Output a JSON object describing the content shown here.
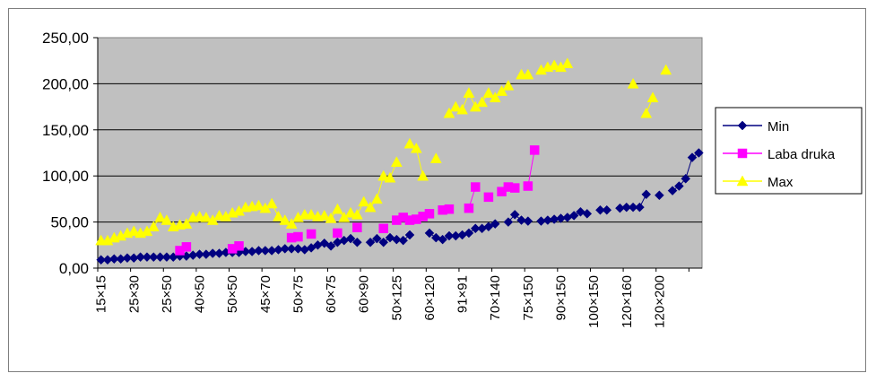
{
  "chart_data": {
    "type": "line",
    "title": "",
    "xlabel": "",
    "ylabel": "",
    "ylim": [
      0,
      250
    ],
    "yticks": [
      "0,00",
      "50,00",
      "100,00",
      "150,00",
      "200,00",
      "250,00"
    ],
    "grid": "horizontal",
    "legend_position": "right",
    "categories": [
      "15×15",
      "25×30",
      "25×50",
      "40×50",
      "50×50",
      "45×70",
      "50×75",
      "60×75",
      "60×90",
      "50×125",
      "60×120",
      "91×91",
      "70×140",
      "75×150",
      "90×150",
      "100×150",
      "120×160",
      "120×200"
    ],
    "series": [
      {
        "name": "Min",
        "color": "#000080",
        "marker": "diamond",
        "points": [
          [
            1,
            9
          ],
          [
            2,
            9
          ],
          [
            3,
            10
          ],
          [
            4,
            10
          ],
          [
            5,
            11
          ],
          [
            6,
            11
          ],
          [
            7,
            12
          ],
          [
            8,
            12
          ],
          [
            9,
            12
          ],
          [
            10,
            12
          ],
          [
            11,
            12
          ],
          [
            12,
            12
          ],
          [
            13,
            13
          ],
          [
            14,
            13
          ],
          [
            15,
            14
          ],
          [
            16,
            15
          ],
          [
            17,
            15
          ],
          [
            18,
            16
          ],
          [
            19,
            16
          ],
          [
            20,
            17
          ],
          [
            21,
            17
          ],
          [
            22,
            17
          ],
          [
            23,
            18
          ],
          [
            24,
            18
          ],
          [
            25,
            19
          ],
          [
            26,
            19
          ],
          [
            27,
            19
          ],
          [
            28,
            20
          ],
          [
            29,
            21
          ],
          [
            30,
            21
          ],
          [
            31,
            21
          ],
          [
            32,
            20
          ],
          [
            33,
            22
          ],
          [
            34,
            25
          ],
          [
            35,
            27
          ],
          [
            36,
            24
          ],
          [
            37,
            28
          ],
          [
            38,
            30
          ],
          [
            39,
            32
          ],
          [
            40,
            28
          ],
          [
            42,
            28
          ],
          [
            43,
            32
          ],
          [
            44,
            28
          ],
          [
            45,
            33
          ],
          [
            46,
            31
          ],
          [
            47,
            30
          ],
          [
            48,
            36
          ],
          [
            51,
            38
          ],
          [
            52,
            33
          ],
          [
            53,
            31
          ],
          [
            54,
            35
          ],
          [
            55,
            35
          ],
          [
            56,
            36
          ],
          [
            57,
            38
          ],
          [
            58,
            43
          ],
          [
            59,
            43
          ],
          [
            60,
            45
          ],
          [
            61,
            48
          ],
          [
            63,
            50
          ],
          [
            64,
            58
          ],
          [
            65,
            52
          ],
          [
            66,
            51
          ],
          [
            68,
            51
          ],
          [
            69,
            52
          ],
          [
            70,
            53
          ],
          [
            71,
            54
          ],
          [
            72,
            55
          ],
          [
            73,
            57
          ],
          [
            74,
            61
          ],
          [
            75,
            59
          ],
          [
            77,
            63
          ],
          [
            78,
            63
          ],
          [
            80,
            65
          ],
          [
            81,
            66
          ],
          [
            82,
            66
          ],
          [
            83,
            66
          ],
          [
            84,
            80
          ],
          [
            86,
            79
          ],
          [
            88,
            84
          ],
          [
            89,
            89
          ],
          [
            90,
            97
          ],
          [
            91,
            120
          ],
          [
            92,
            125
          ]
        ]
      },
      {
        "name": "Laba druka",
        "color": "#ff00ff",
        "marker": "square",
        "points": [
          [
            13,
            19
          ],
          [
            14,
            23
          ],
          [
            21,
            21
          ],
          [
            22,
            24
          ],
          [
            30,
            33
          ],
          [
            31,
            34
          ],
          [
            33,
            37
          ],
          [
            37,
            38
          ],
          [
            40,
            44
          ],
          [
            44,
            43
          ],
          [
            46,
            52
          ],
          [
            47,
            55
          ],
          [
            48,
            52
          ],
          [
            49,
            53
          ],
          [
            50,
            56
          ],
          [
            51,
            59
          ],
          [
            53,
            63
          ],
          [
            54,
            64
          ],
          [
            57,
            65
          ],
          [
            58,
            88
          ],
          [
            60,
            77
          ],
          [
            62,
            83
          ],
          [
            63,
            88
          ],
          [
            64,
            87
          ],
          [
            66,
            89
          ],
          [
            67,
            128
          ]
        ]
      },
      {
        "name": "Max",
        "color": "#ffff00",
        "marker": "triangle",
        "points": [
          [
            1,
            30
          ],
          [
            2,
            30
          ],
          [
            3,
            33
          ],
          [
            4,
            35
          ],
          [
            5,
            38
          ],
          [
            6,
            40
          ],
          [
            7,
            38
          ],
          [
            8,
            40
          ],
          [
            9,
            45
          ],
          [
            10,
            55
          ],
          [
            11,
            52
          ],
          [
            12,
            45
          ],
          [
            13,
            47
          ],
          [
            14,
            48
          ],
          [
            15,
            55
          ],
          [
            16,
            56
          ],
          [
            17,
            55
          ],
          [
            18,
            52
          ],
          [
            19,
            57
          ],
          [
            20,
            56
          ],
          [
            21,
            60
          ],
          [
            22,
            62
          ],
          [
            23,
            66
          ],
          [
            24,
            67
          ],
          [
            25,
            68
          ],
          [
            26,
            65
          ],
          [
            27,
            70
          ],
          [
            28,
            56
          ],
          [
            29,
            52
          ],
          [
            30,
            48
          ],
          [
            31,
            55
          ],
          [
            32,
            58
          ],
          [
            33,
            58
          ],
          [
            34,
            56
          ],
          [
            35,
            57
          ],
          [
            36,
            54
          ],
          [
            37,
            64
          ],
          [
            38,
            55
          ],
          [
            39,
            60
          ],
          [
            40,
            58
          ],
          [
            41,
            72
          ],
          [
            42,
            66
          ],
          [
            43,
            75
          ],
          [
            44,
            100
          ],
          [
            45,
            98
          ],
          [
            46,
            115
          ],
          [
            48,
            135
          ],
          [
            49,
            130
          ],
          [
            50,
            100
          ],
          [
            52,
            119
          ],
          [
            54,
            168
          ],
          [
            55,
            175
          ],
          [
            56,
            172
          ],
          [
            57,
            190
          ],
          [
            58,
            175
          ],
          [
            59,
            180
          ],
          [
            60,
            190
          ],
          [
            61,
            185
          ],
          [
            62,
            192
          ],
          [
            63,
            198
          ],
          [
            65,
            210
          ],
          [
            66,
            210
          ],
          [
            68,
            215
          ],
          [
            69,
            218
          ],
          [
            70,
            220
          ],
          [
            71,
            218
          ],
          [
            72,
            222
          ],
          [
            82,
            200
          ],
          [
            84,
            168
          ],
          [
            85,
            185
          ],
          [
            87,
            215
          ]
        ]
      }
    ]
  }
}
